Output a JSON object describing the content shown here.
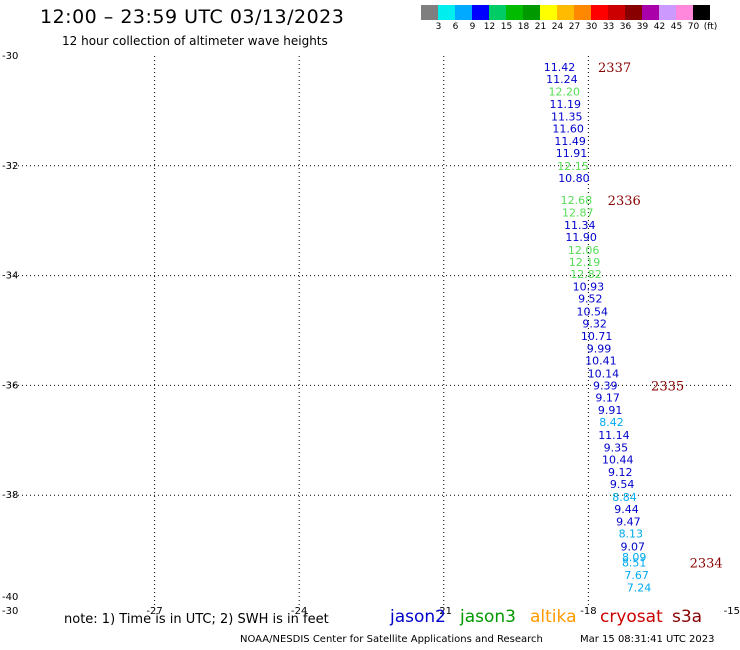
{
  "header": {
    "title": "12:00 – 23:59 UTC 03/13/2023",
    "subtitle": "12 hour collection of altimeter wave heights"
  },
  "color_scale": {
    "colors": [
      "#7f7f7f",
      "#00eeee",
      "#00aaff",
      "#0000ff",
      "#00cc66",
      "#00bb00",
      "#009900",
      "#ffff00",
      "#ffbb00",
      "#ff8800",
      "#ff0000",
      "#cc0000",
      "#880000",
      "#aa00aa",
      "#cc99ff",
      "#ff88dd",
      "#000000"
    ],
    "labels": [
      "3",
      "6",
      "9",
      "12",
      "15",
      "18",
      "21",
      "24",
      "27",
      "30",
      "33",
      "36",
      "39",
      "42",
      "45",
      "70",
      "(ft)"
    ]
  },
  "footer": {
    "note": "note:  1) Time is in UTC;  2) SWH is in feet",
    "credit": "NOAA/NESDIS Center for Satellite Applications and Research",
    "timestamp": "Mar 15 08:31:41 UTC 2023"
  },
  "legend": [
    {
      "name": "jason2",
      "color": "#0000cc"
    },
    {
      "name": "jason3",
      "color": "#009900"
    },
    {
      "name": "altika",
      "color": "#ff9900"
    },
    {
      "name": "cryosat",
      "color": "#cc0000"
    },
    {
      "name": "s3a",
      "color": "#880000"
    }
  ],
  "chart_data": {
    "type": "scatter",
    "title": "12:00 – 23:59 UTC 03/13/2023",
    "subtitle": "12 hour collection of altimeter wave heights",
    "xlabel": "",
    "ylabel": "",
    "xlim": [
      -30,
      -15
    ],
    "ylim": [
      -40,
      -30
    ],
    "x_ticks": [
      "-30",
      "-27",
      "-24",
      "-21",
      "-18",
      "-15"
    ],
    "y_ticks": [
      "-30",
      "-32",
      "-34",
      "-36",
      "-38",
      "-40"
    ],
    "grid": true,
    "points": [
      {
        "lon": -18.6,
        "lat": -30.2,
        "value": "11.42",
        "color": "#0000cc"
      },
      {
        "lon": -18.55,
        "lat": -30.42,
        "value": "11.24",
        "color": "#0000cc"
      },
      {
        "lon": -18.5,
        "lat": -30.65,
        "value": "12.20",
        "color": "#55dd55"
      },
      {
        "lon": -18.48,
        "lat": -30.87,
        "value": "11.19",
        "color": "#0000cc"
      },
      {
        "lon": -18.45,
        "lat": -31.1,
        "value": "11.35",
        "color": "#0000cc"
      },
      {
        "lon": -18.42,
        "lat": -31.32,
        "value": "11.60",
        "color": "#0000cc"
      },
      {
        "lon": -18.38,
        "lat": -31.55,
        "value": "11.49",
        "color": "#0000cc"
      },
      {
        "lon": -18.35,
        "lat": -31.77,
        "value": "11.91",
        "color": "#0000cc"
      },
      {
        "lon": -18.32,
        "lat": -32.0,
        "value": "12.15",
        "color": "#55dd55"
      },
      {
        "lon": -18.3,
        "lat": -32.22,
        "value": "10.80",
        "color": "#0000cc"
      },
      {
        "lon": -18.25,
        "lat": -32.62,
        "value": "12.68",
        "color": "#55dd55"
      },
      {
        "lon": -18.22,
        "lat": -32.85,
        "value": "12.87",
        "color": "#55dd55"
      },
      {
        "lon": -18.18,
        "lat": -33.08,
        "value": "11.34",
        "color": "#0000cc"
      },
      {
        "lon": -18.15,
        "lat": -33.3,
        "value": "11.90",
        "color": "#0000cc"
      },
      {
        "lon": -18.1,
        "lat": -33.53,
        "value": "12.06",
        "color": "#55dd55"
      },
      {
        "lon": -18.08,
        "lat": -33.75,
        "value": "12.19",
        "color": "#55dd55"
      },
      {
        "lon": -18.05,
        "lat": -33.97,
        "value": "12.82",
        "color": "#55dd55"
      },
      {
        "lon": -18.0,
        "lat": -34.2,
        "value": "10.93",
        "color": "#0000cc"
      },
      {
        "lon": -17.96,
        "lat": -34.42,
        "value": "9.52",
        "color": "#0000cc"
      },
      {
        "lon": -17.92,
        "lat": -34.65,
        "value": "10.54",
        "color": "#0000cc"
      },
      {
        "lon": -17.87,
        "lat": -34.87,
        "value": "9.32",
        "color": "#0000cc"
      },
      {
        "lon": -17.83,
        "lat": -35.1,
        "value": "10.71",
        "color": "#0000cc"
      },
      {
        "lon": -17.78,
        "lat": -35.33,
        "value": "9.99",
        "color": "#0000cc"
      },
      {
        "lon": -17.74,
        "lat": -35.55,
        "value": "10.41",
        "color": "#0000cc"
      },
      {
        "lon": -17.69,
        "lat": -35.78,
        "value": "10.14",
        "color": "#0000cc"
      },
      {
        "lon": -17.65,
        "lat": -36.0,
        "value": "9.39",
        "color": "#0000cc"
      },
      {
        "lon": -17.6,
        "lat": -36.22,
        "value": "9.17",
        "color": "#0000cc"
      },
      {
        "lon": -17.55,
        "lat": -36.45,
        "value": "9.91",
        "color": "#0000cc"
      },
      {
        "lon": -17.52,
        "lat": -36.67,
        "value": "8.42",
        "color": "#00aaee"
      },
      {
        "lon": -17.47,
        "lat": -36.9,
        "value": "11.14",
        "color": "#0000cc"
      },
      {
        "lon": -17.43,
        "lat": -37.13,
        "value": "9.35",
        "color": "#0000cc"
      },
      {
        "lon": -17.39,
        "lat": -37.35,
        "value": "10.44",
        "color": "#0000cc"
      },
      {
        "lon": -17.34,
        "lat": -37.58,
        "value": "9.12",
        "color": "#0000cc"
      },
      {
        "lon": -17.3,
        "lat": -37.8,
        "value": "9.54",
        "color": "#0000cc"
      },
      {
        "lon": -17.25,
        "lat": -38.03,
        "value": "8.84",
        "color": "#00aaee"
      },
      {
        "lon": -17.21,
        "lat": -38.25,
        "value": "9.44",
        "color": "#0000cc"
      },
      {
        "lon": -17.17,
        "lat": -38.48,
        "value": "9.47",
        "color": "#0000cc"
      },
      {
        "lon": -17.12,
        "lat": -38.7,
        "value": "8.13",
        "color": "#00aaee"
      },
      {
        "lon": -17.08,
        "lat": -38.93,
        "value": "9.07",
        "color": "#0000cc"
      },
      {
        "lon": -17.05,
        "lat": -39.13,
        "value": "8.09",
        "color": "#00aaee"
      },
      {
        "lon": -17.05,
        "lat": -39.23,
        "value": "8.51",
        "color": "#00aaee"
      },
      {
        "lon": -17.0,
        "lat": -39.45,
        "value": "7.67",
        "color": "#00aaee"
      },
      {
        "lon": -16.95,
        "lat": -39.68,
        "value": "7.24",
        "color": "#00aaee"
      }
    ],
    "time_labels": [
      {
        "lon": -17.8,
        "lat": -30.2,
        "label": "2337",
        "color": "#880000"
      },
      {
        "lon": -17.6,
        "lat": -32.62,
        "label": "2336",
        "color": "#880000"
      },
      {
        "lon": -16.7,
        "lat": -36.0,
        "label": "2335",
        "color": "#880000"
      },
      {
        "lon": -15.9,
        "lat": -39.23,
        "label": "2334",
        "color": "#880000"
      }
    ]
  }
}
